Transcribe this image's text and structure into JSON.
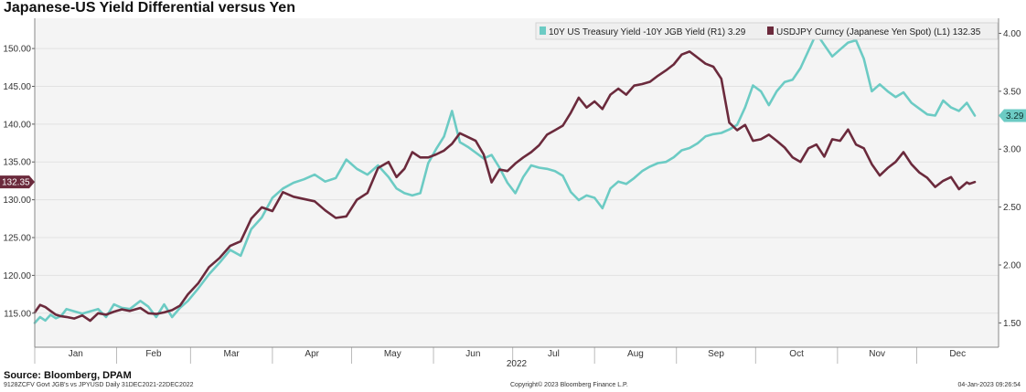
{
  "title": "Japanese-US Yield Differential versus Yen",
  "source": "Source: Bloomberg, DPAM",
  "footer": {
    "left": "9128ZCFV Govt JGB's vs JPYUSD  Daily 31DEC2021-22DEC2022",
    "center": "Copyright© 2023 Bloomberg Finance L.P.",
    "right": "04-Jan-2023 09:26:54"
  },
  "colors": {
    "teal": "#6ccbc4",
    "maroon": "#6b2a3c",
    "plot_bg": "#f4f4f4",
    "grid": "#e2e2e2"
  },
  "chart_data": {
    "type": "line",
    "year_label": "2022",
    "months": [
      "Jan",
      "Feb",
      "Mar",
      "Apr",
      "May",
      "Jun",
      "Jul",
      "Aug",
      "Sep",
      "Oct",
      "Nov",
      "Dec"
    ],
    "left_axis": {
      "ticks": [
        "115.00",
        "120.00",
        "125.00",
        "130.00",
        "135.00",
        "140.00",
        "145.00",
        "150.00"
      ],
      "ylim": [
        110.5,
        154
      ]
    },
    "right_axis": {
      "ticks": [
        "1.50",
        "2.00",
        "2.50",
        "3.00",
        "3.50",
        "4.00"
      ],
      "ylim": [
        1.29,
        4.13
      ]
    },
    "series": [
      {
        "name": "10Y US Treasury Yield -10Y JGB Yield (R1) 3.29",
        "axis": "right",
        "last_label": "3.29",
        "x": [
          0,
          2,
          4,
          6,
          8,
          10,
          12,
          15,
          18,
          21,
          24,
          27,
          30,
          33,
          36,
          40,
          43,
          46,
          49,
          52,
          55,
          58,
          62,
          66,
          70,
          74,
          78,
          82,
          86,
          90,
          94,
          98,
          102,
          106,
          110,
          114,
          118,
          122,
          126,
          130,
          134,
          137,
          140,
          143,
          146,
          149,
          152,
          155,
          158,
          161,
          164,
          167,
          170,
          173,
          176,
          179,
          182,
          185,
          188,
          191,
          194,
          197,
          200,
          203,
          206,
          209,
          212,
          215,
          218,
          221,
          224,
          227,
          230,
          233,
          236,
          239,
          242,
          245,
          248,
          251,
          254,
          257,
          260,
          263,
          266,
          269,
          272,
          275,
          278,
          281,
          284,
          287,
          290,
          293,
          296,
          299,
          302,
          305,
          308,
          311,
          314,
          317,
          320,
          323,
          326,
          329,
          332,
          335,
          338,
          341,
          344,
          347,
          350,
          353,
          356
        ],
        "values": [
          1.5,
          1.55,
          1.52,
          1.57,
          1.54,
          1.56,
          1.62,
          1.6,
          1.58,
          1.6,
          1.62,
          1.55,
          1.66,
          1.63,
          1.62,
          1.69,
          1.64,
          1.55,
          1.66,
          1.55,
          1.63,
          1.69,
          1.8,
          1.92,
          2.02,
          2.13,
          2.08,
          2.31,
          2.41,
          2.58,
          2.66,
          2.71,
          2.74,
          2.78,
          2.72,
          2.75,
          2.91,
          2.83,
          2.78,
          2.86,
          2.76,
          2.66,
          2.62,
          2.6,
          2.62,
          2.88,
          3.0,
          3.11,
          3.33,
          3.06,
          3.02,
          2.97,
          2.92,
          2.95,
          2.84,
          2.71,
          2.62,
          2.76,
          2.86,
          2.84,
          2.83,
          2.81,
          2.77,
          2.63,
          2.56,
          2.6,
          2.58,
          2.49,
          2.66,
          2.72,
          2.7,
          2.75,
          2.81,
          2.85,
          2.88,
          2.89,
          2.93,
          2.99,
          3.01,
          3.05,
          3.11,
          3.13,
          3.14,
          3.17,
          3.21,
          3.36,
          3.55,
          3.5,
          3.38,
          3.5,
          3.58,
          3.6,
          3.7,
          3.85,
          4.0,
          3.9,
          3.8,
          3.86,
          3.92,
          3.94,
          3.78,
          3.5,
          3.56,
          3.5,
          3.45,
          3.49,
          3.4,
          3.35,
          3.3,
          3.29,
          3.42,
          3.36,
          3.33,
          3.4,
          3.29
        ]
      },
      {
        "name": "USDJPY Curncy (Japanese Yen Spot) (L1) 132.35",
        "axis": "left",
        "last_label": "132.35",
        "x": [
          0,
          2,
          4,
          6,
          8,
          10,
          12,
          15,
          18,
          21,
          24,
          27,
          30,
          33,
          36,
          40,
          43,
          46,
          49,
          52,
          55,
          58,
          62,
          66,
          70,
          74,
          78,
          82,
          86,
          90,
          94,
          98,
          102,
          106,
          110,
          114,
          118,
          122,
          126,
          130,
          134,
          137,
          140,
          143,
          146,
          149,
          152,
          155,
          158,
          161,
          164,
          167,
          170,
          173,
          176,
          179,
          182,
          185,
          188,
          191,
          194,
          197,
          200,
          203,
          206,
          209,
          212,
          215,
          218,
          221,
          224,
          227,
          230,
          233,
          236,
          239,
          242,
          245,
          248,
          251,
          254,
          257,
          260,
          263,
          266,
          269,
          272,
          275,
          278,
          281,
          284,
          287,
          290,
          293,
          296,
          299,
          302,
          305,
          308,
          311,
          314,
          317,
          320,
          323,
          326,
          329,
          332,
          335,
          338,
          341,
          344,
          347,
          350,
          353,
          354,
          356
        ],
        "values": [
          115.1,
          116.1,
          115.8,
          115.3,
          114.8,
          114.6,
          114.5,
          114.3,
          114.7,
          114.0,
          115.0,
          114.8,
          115.2,
          115.5,
          115.3,
          115.7,
          115.0,
          114.9,
          115.1,
          115.4,
          116.0,
          117.5,
          119.0,
          121.1,
          122.3,
          123.9,
          124.5,
          127.5,
          129.0,
          128.5,
          131.0,
          130.4,
          130.1,
          129.8,
          128.6,
          127.6,
          127.8,
          130.0,
          130.9,
          134.2,
          135.0,
          133.0,
          134.1,
          136.3,
          135.6,
          135.6,
          136.0,
          136.5,
          137.4,
          138.8,
          138.3,
          137.8,
          136.0,
          132.3,
          134.0,
          133.8,
          134.8,
          135.6,
          136.3,
          137.2,
          138.6,
          139.2,
          139.8,
          141.5,
          143.5,
          142.2,
          143.0,
          142.0,
          143.9,
          144.7,
          143.9,
          145.1,
          145.3,
          145.6,
          146.4,
          147.1,
          147.9,
          149.2,
          149.6,
          148.8,
          148.0,
          147.6,
          146.0,
          140.2,
          139.2,
          139.9,
          137.8,
          138.0,
          138.6,
          137.8,
          136.9,
          135.6,
          135.0,
          136.8,
          137.3,
          135.7,
          138.0,
          137.8,
          139.3,
          137.3,
          136.8,
          134.7,
          133.2,
          134.2,
          135.0,
          136.3,
          134.7,
          133.6,
          132.9,
          131.7,
          132.5,
          133.0,
          131.4,
          132.3,
          132.1,
          132.35
        ]
      }
    ]
  }
}
